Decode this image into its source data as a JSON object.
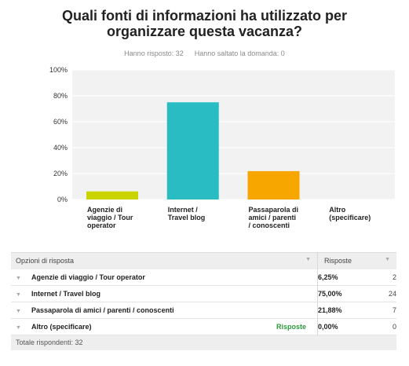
{
  "question": {
    "title_line1": "Quali fonti di informazioni ha utilizzato per",
    "title_line2": "organizzare questa vacanza?",
    "answered": "Hanno risposto: 32",
    "skipped": "Hanno saltato la domanda: 0"
  },
  "chart_data": {
    "type": "bar",
    "categories": [
      "Agenzie di viaggio / Tour operator",
      "Internet / Travel blog",
      "Passaparola di amici / parenti / conoscenti",
      "Altro (specificare)"
    ],
    "category_lines": [
      [
        "Agenzie di",
        "viaggio / Tour",
        "operator"
      ],
      [
        "Internet /",
        "Travel blog"
      ],
      [
        "Passaparola di",
        "amici / parenti",
        "/ conoscenti"
      ],
      [
        "Altro",
        "(specificare)"
      ]
    ],
    "values": [
      6.25,
      75.0,
      21.88,
      0.0
    ],
    "colors": [
      "#c9d400",
      "#29bcc2",
      "#f7a600",
      "#9b59b6"
    ],
    "ylim": [
      0,
      100
    ],
    "yticks": [
      "0%",
      "20%",
      "40%",
      "60%",
      "80%",
      "100%"
    ],
    "grid": true,
    "background": "#f2f2f2"
  },
  "table": {
    "col_options": "Opzioni di risposta",
    "col_responses": "Risposte",
    "rows": [
      {
        "label": "Agenzie di viaggio / Tour operator",
        "pct": "6,25%",
        "count": "2",
        "link": ""
      },
      {
        "label": "Internet / Travel blog",
        "pct": "75,00%",
        "count": "24",
        "link": ""
      },
      {
        "label": "Passaparola di amici / parenti / conoscenti",
        "pct": "21,88%",
        "count": "7",
        "link": ""
      },
      {
        "label": "Altro (specificare)",
        "pct": "0,00%",
        "count": "0",
        "link": "Risposte"
      }
    ],
    "footer": "Totale rispondenti: 32",
    "link_color": "#2d9b3c"
  }
}
